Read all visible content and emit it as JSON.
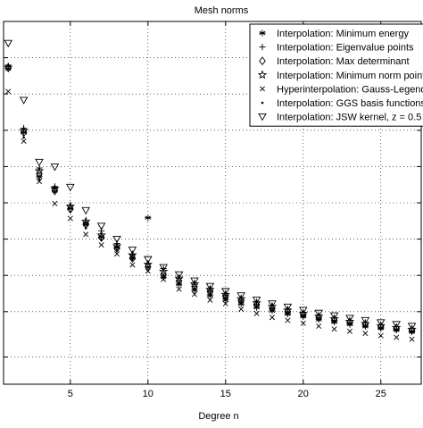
{
  "chart_data": {
    "type": "scatter",
    "title": "Mesh norms",
    "xlabel": "Degree n",
    "ylabel": "",
    "xlim": [
      0.7,
      27.6
    ],
    "ylim": [
      0,
      1
    ],
    "grid": true,
    "grid_style": "dotted",
    "legend_position": "top-right",
    "x_ticks": [
      5,
      10,
      15,
      20,
      25
    ],
    "x_tick_labels": [
      "5",
      "10",
      "15",
      "20",
      "25"
    ],
    "y_ticks": [
      0.075,
      0.2,
      0.3,
      0.4,
      0.5,
      0.6,
      0.7,
      0.8,
      0.9
    ],
    "x": [
      1,
      2,
      3,
      4,
      5,
      6,
      7,
      8,
      9,
      10,
      11,
      12,
      13,
      14,
      15,
      16,
      17,
      18,
      19,
      20,
      21,
      22,
      23,
      24,
      25,
      26,
      27
    ],
    "series": [
      {
        "name": "Interpolation: Minimum energy",
        "marker": "asterisk",
        "values": [
          0.877,
          0.694,
          0.572,
          0.54,
          0.484,
          0.44,
          0.406,
          0.378,
          0.348,
          0.459,
          0.295,
          0.275,
          0.259,
          0.244,
          0.232,
          0.221,
          0.211,
          0.202,
          0.193,
          0.186,
          0.178,
          0.171,
          0.165,
          0.159,
          0.154,
          0.149,
          0.144
        ]
      },
      {
        "name": "Interpolation: Eigenvalue points",
        "marker": "plus",
        "values": [
          0.87,
          0.706,
          0.596,
          0.545,
          0.494,
          0.446,
          0.423,
          0.388,
          0.357,
          0.332,
          0.319,
          0.292,
          0.275,
          0.259,
          0.245,
          0.232,
          0.221,
          0.21,
          0.2,
          0.191,
          0.183,
          0.176,
          0.169,
          0.163,
          0.157,
          0.152,
          0.147
        ]
      },
      {
        "name": "Interpolation: Max determinant",
        "marker": "diamond",
        "values": [
          0.872,
          0.694,
          0.581,
          0.533,
          0.483,
          0.441,
          0.404,
          0.374,
          0.347,
          0.324,
          0.303,
          0.285,
          0.269,
          0.255,
          0.242,
          0.23,
          0.219,
          0.209,
          0.2,
          0.192,
          0.184,
          0.177,
          0.171,
          0.165,
          0.159,
          0.154,
          0.149
        ]
      },
      {
        "name": "Interpolation: Minimum norm points",
        "marker": "star",
        "values": [
          0.874,
          0.699,
          0.588,
          0.539,
          0.49,
          0.449,
          0.411,
          0.381,
          0.356,
          0.33,
          0.311,
          0.292,
          0.276,
          0.261,
          0.247,
          0.235,
          0.224,
          0.214,
          0.204,
          0.195,
          0.187,
          0.18,
          0.173,
          0.167,
          0.161,
          0.156,
          0.151
        ]
      },
      {
        "name": "Hyperinterpolation: Gauss-Legendre",
        "marker": "cross",
        "values": [
          0.807,
          0.67,
          0.559,
          0.498,
          0.457,
          0.413,
          0.384,
          0.359,
          0.329,
          0.312,
          0.289,
          0.262,
          0.248,
          0.232,
          0.222,
          0.207,
          0.195,
          0.184,
          0.176,
          0.168,
          0.16,
          0.152,
          0.146,
          0.14,
          0.134,
          0.129,
          0.124
        ]
      },
      {
        "name": "Interpolation: GGS basis functions",
        "marker": "dot",
        "values": [
          0.87,
          0.68,
          0.565,
          0.53,
          0.475,
          0.43,
          0.398,
          0.37,
          0.344,
          0.322,
          0.3,
          0.28,
          0.264,
          0.25,
          0.237,
          0.225,
          0.214,
          0.205,
          0.196,
          0.188,
          0.18,
          0.173,
          0.166,
          0.16,
          0.155,
          0.15,
          0.145
        ]
      },
      {
        "name": "Interpolation: JSW kernel, z = 0.5",
        "marker": "triangle-down",
        "values": [
          0.94,
          0.783,
          0.612,
          0.599,
          0.543,
          0.479,
          0.436,
          0.4,
          0.37,
          0.344,
          0.322,
          0.302,
          0.285,
          0.27,
          0.256,
          0.244,
          0.232,
          0.222,
          0.213,
          0.204,
          0.196,
          0.189,
          0.182,
          0.176,
          0.17,
          0.165,
          0.16
        ]
      }
    ]
  }
}
